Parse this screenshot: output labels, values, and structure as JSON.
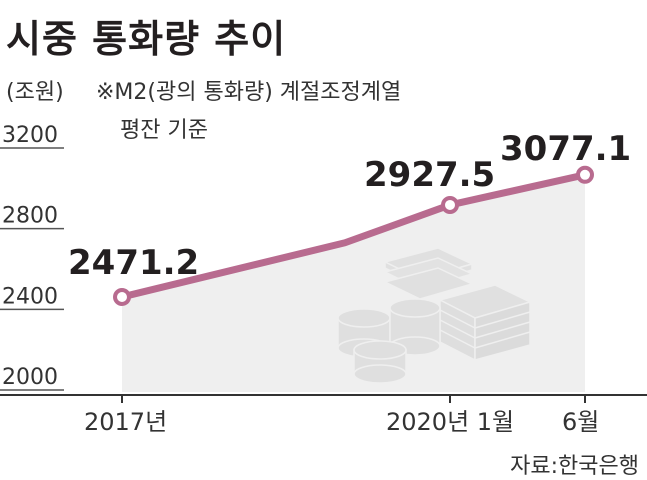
{
  "header": {
    "title": "시중 통화량 추이",
    "unit": "(조원)",
    "note_line1": "※M2(광의 통화량) 계절조정계열",
    "note_line2": "평잔 기준"
  },
  "source": "자료:한국은행",
  "chart_data": {
    "type": "area",
    "title": "시중 통화량 추이",
    "xlabel": "",
    "ylabel": "(조원)",
    "ylim": [
      2000,
      3200
    ],
    "yticks": [
      "3200",
      "2800",
      "2400",
      "2000"
    ],
    "x_labels": [
      "2017년",
      "2020년 1월",
      "6월"
    ],
    "points": [
      {
        "x": "2017년",
        "value": 2471.2,
        "label": "2471.2"
      },
      {
        "x": "2020년 1월",
        "value": 2927.5,
        "label": "2927.5"
      },
      {
        "x": "6월",
        "value": 3077.1,
        "label": "3077.1"
      }
    ],
    "colors": {
      "line": "#b86b8f",
      "area": "#e9e9ea",
      "axis": "#333333"
    }
  }
}
